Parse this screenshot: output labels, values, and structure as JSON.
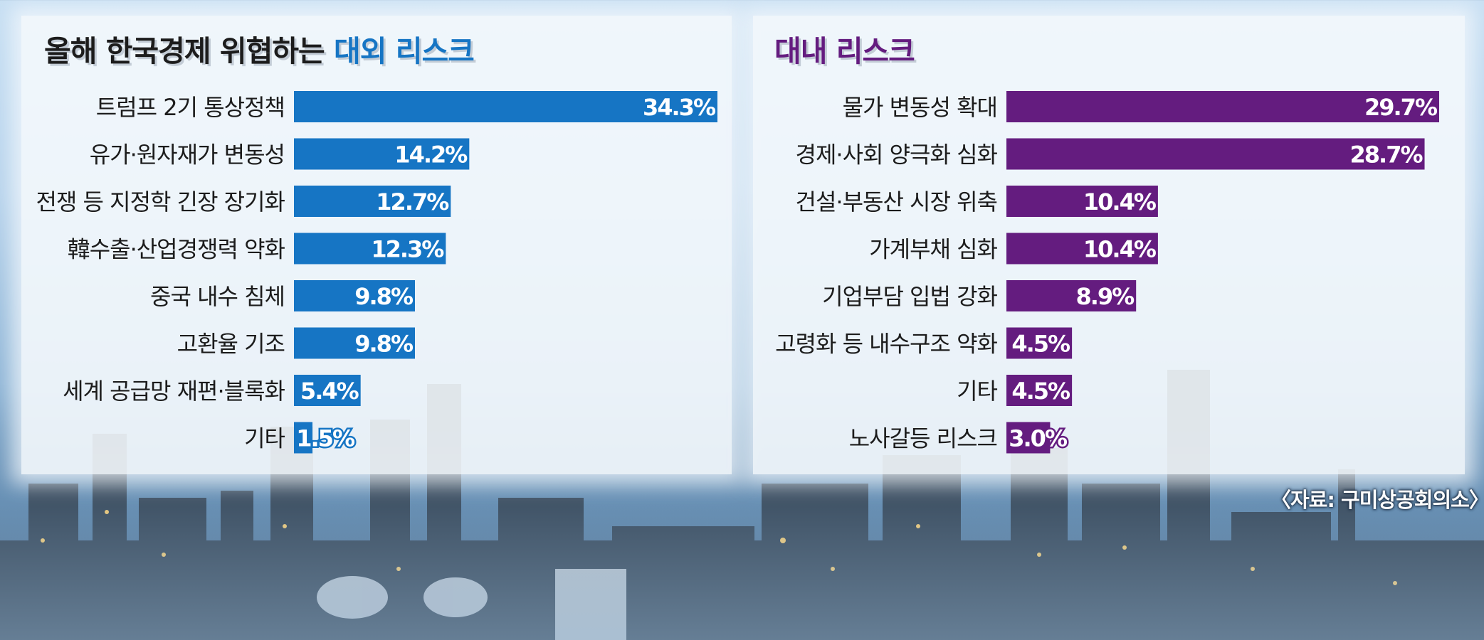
{
  "colors": {
    "left_bar": "#1675c4",
    "right_bar": "#641c7f",
    "left_accent": "#1675c4",
    "right_accent": "#641c7f",
    "label_text": "#1c1c1c"
  },
  "titles": {
    "left_prefix": "올해 한국경제 위협하는 ",
    "left_accent": "대외 리스크",
    "right": "대내 리스크"
  },
  "source": "〈자료: 구미상공회의소〉",
  "chart_data": [
    {
      "type": "bar",
      "orientation": "horizontal",
      "title": "대외 리스크",
      "categories": [
        "트럼프 2기 통상정책",
        "유가·원자재가 변동성",
        "전쟁 등 지정학 긴장 장기화",
        "韓수출·산업경쟁력 약화",
        "중국 내수 침체",
        "고환율 기조",
        "세계 공급망 재편·블록화",
        "기타"
      ],
      "values": [
        34.3,
        14.2,
        12.7,
        12.3,
        9.8,
        9.8,
        5.4,
        1.5
      ],
      "value_labels": [
        "34.3%",
        "14.2%",
        "12.7%",
        "12.3%",
        "9.8%",
        "9.8%",
        "5.4%",
        "1.5%"
      ],
      "unit": "%",
      "xlim": [
        0,
        34.3
      ],
      "grid": false
    },
    {
      "type": "bar",
      "orientation": "horizontal",
      "title": "대내 리스크",
      "categories": [
        "물가 변동성 확대",
        "경제·사회 양극화 심화",
        "건설·부동산 시장 위축",
        "가계부채 심화",
        "기업부담 입법 강화",
        "고령화 등 내수구조 약화",
        "기타",
        "노사갈등 리스크"
      ],
      "values": [
        29.7,
        28.7,
        10.4,
        10.4,
        8.9,
        4.5,
        4.5,
        3.0
      ],
      "value_labels": [
        "29.7%",
        "28.7%",
        "10.4%",
        "10.4%",
        "8.9%",
        "4.5%",
        "4.5%",
        "3.0%"
      ],
      "unit": "%",
      "xlim": [
        0,
        29.7
      ],
      "grid": false
    }
  ]
}
